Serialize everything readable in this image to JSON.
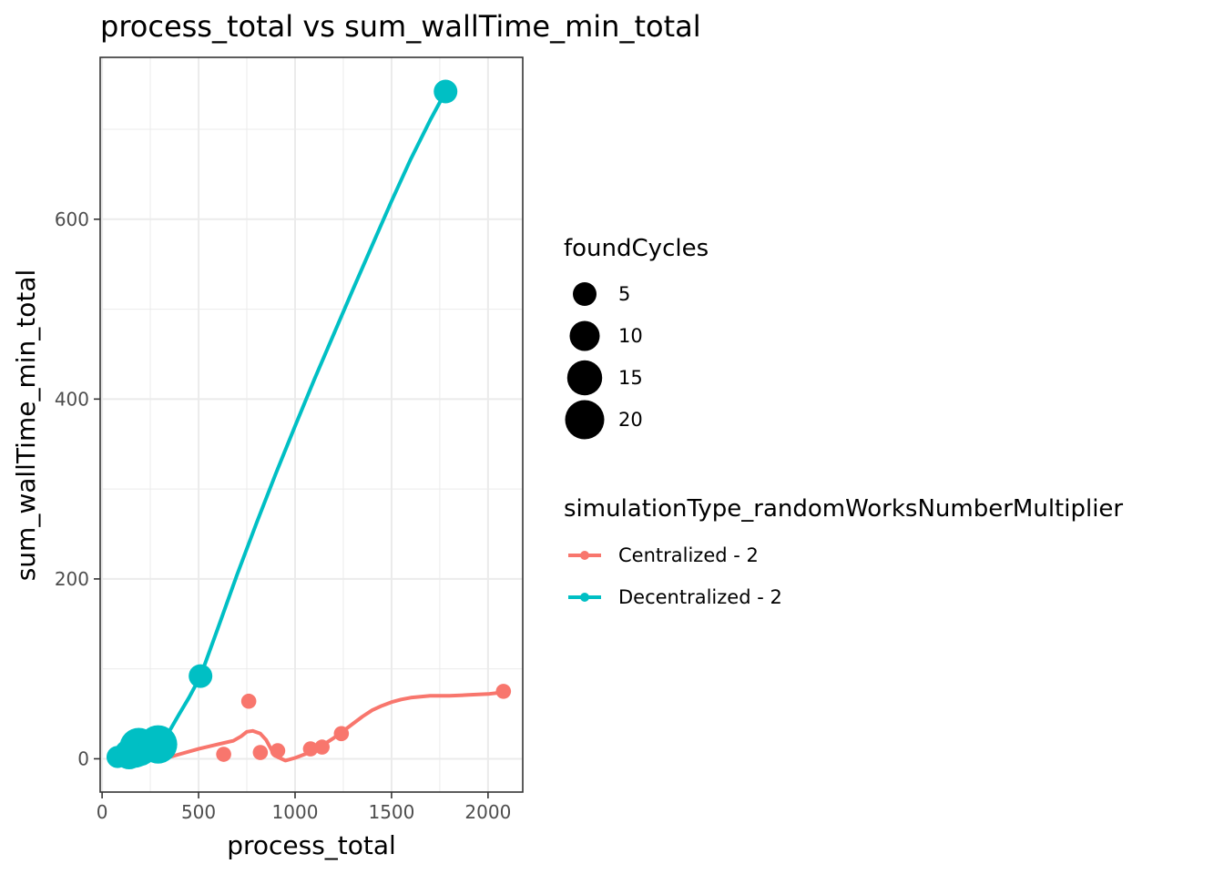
{
  "chart_data": {
    "type": "scatter",
    "title": "process_total  vs  sum_wallTime_min_total",
    "xlabel": "process_total",
    "ylabel": "sum_wallTime_min_total",
    "xlim": [
      -10,
      2180
    ],
    "ylim": [
      -37,
      780
    ],
    "xticks": [
      0,
      500,
      1000,
      1500,
      2000
    ],
    "xtick_labels": [
      "0",
      "500",
      "1000",
      "1500",
      "2000"
    ],
    "yticks": [
      0,
      200,
      400,
      600
    ],
    "ytick_labels": [
      "0",
      "200",
      "400",
      "600"
    ],
    "grid": true,
    "legend_position": "right",
    "size_legend": {
      "title": "foundCycles",
      "entries": [
        {
          "label": "5",
          "value": 5
        },
        {
          "label": "10",
          "value": 10
        },
        {
          "label": "15",
          "value": 15
        },
        {
          "label": "20",
          "value": 20
        }
      ]
    },
    "color_legend": {
      "title": "simulationType_randomWorksNumberMultiplier"
    },
    "series": [
      {
        "name": "Centralized - 2",
        "color": "#F8766D",
        "points": [
          {
            "x": 630,
            "y": 5,
            "size": 1
          },
          {
            "x": 760,
            "y": 64,
            "size": 1
          },
          {
            "x": 820,
            "y": 7,
            "size": 1
          },
          {
            "x": 910,
            "y": 9,
            "size": 1
          },
          {
            "x": 1080,
            "y": 11,
            "size": 1
          },
          {
            "x": 1140,
            "y": 13,
            "size": 1
          },
          {
            "x": 1240,
            "y": 28,
            "size": 1
          },
          {
            "x": 2080,
            "y": 75,
            "size": 1
          }
        ],
        "smooth": [
          [
            335,
            1
          ],
          [
            400,
            5
          ],
          [
            500,
            11
          ],
          [
            600,
            16
          ],
          [
            680,
            20
          ],
          [
            720,
            25
          ],
          [
            750,
            30
          ],
          [
            780,
            31
          ],
          [
            820,
            28
          ],
          [
            850,
            21
          ],
          [
            880,
            9
          ],
          [
            910,
            2
          ],
          [
            950,
            -2
          ],
          [
            1000,
            1
          ],
          [
            1050,
            5
          ],
          [
            1100,
            10
          ],
          [
            1150,
            16
          ],
          [
            1200,
            23
          ],
          [
            1250,
            31
          ],
          [
            1300,
            39
          ],
          [
            1350,
            47
          ],
          [
            1400,
            54
          ],
          [
            1450,
            59
          ],
          [
            1500,
            63
          ],
          [
            1550,
            66
          ],
          [
            1600,
            68
          ],
          [
            1700,
            70
          ],
          [
            1800,
            70
          ],
          [
            1900,
            71
          ],
          [
            2000,
            72
          ],
          [
            2080,
            74
          ]
        ]
      },
      {
        "name": "Decentralized - 2",
        "color": "#00BFC4",
        "points": [
          {
            "x": 80,
            "y": 2,
            "size": 4
          },
          {
            "x": 140,
            "y": 5,
            "size": 10
          },
          {
            "x": 170,
            "y": 9,
            "size": 14
          },
          {
            "x": 190,
            "y": 13,
            "size": 19
          },
          {
            "x": 290,
            "y": 16,
            "size": 19
          },
          {
            "x": 510,
            "y": 92,
            "size": 5
          },
          {
            "x": 1780,
            "y": 742,
            "size": 5
          }
        ],
        "smooth": [
          [
            80,
            0
          ],
          [
            140,
            3
          ],
          [
            190,
            8
          ],
          [
            240,
            11
          ],
          [
            290,
            16
          ],
          [
            320,
            20
          ],
          [
            360,
            35
          ],
          [
            400,
            50
          ],
          [
            450,
            68
          ],
          [
            510,
            92
          ],
          [
            600,
            145
          ],
          [
            700,
            205
          ],
          [
            800,
            262
          ],
          [
            900,
            317
          ],
          [
            1000,
            370
          ],
          [
            1100,
            422
          ],
          [
            1200,
            472
          ],
          [
            1300,
            522
          ],
          [
            1400,
            571
          ],
          [
            1500,
            620
          ],
          [
            1600,
            667
          ],
          [
            1700,
            710
          ],
          [
            1780,
            742
          ]
        ]
      }
    ]
  }
}
